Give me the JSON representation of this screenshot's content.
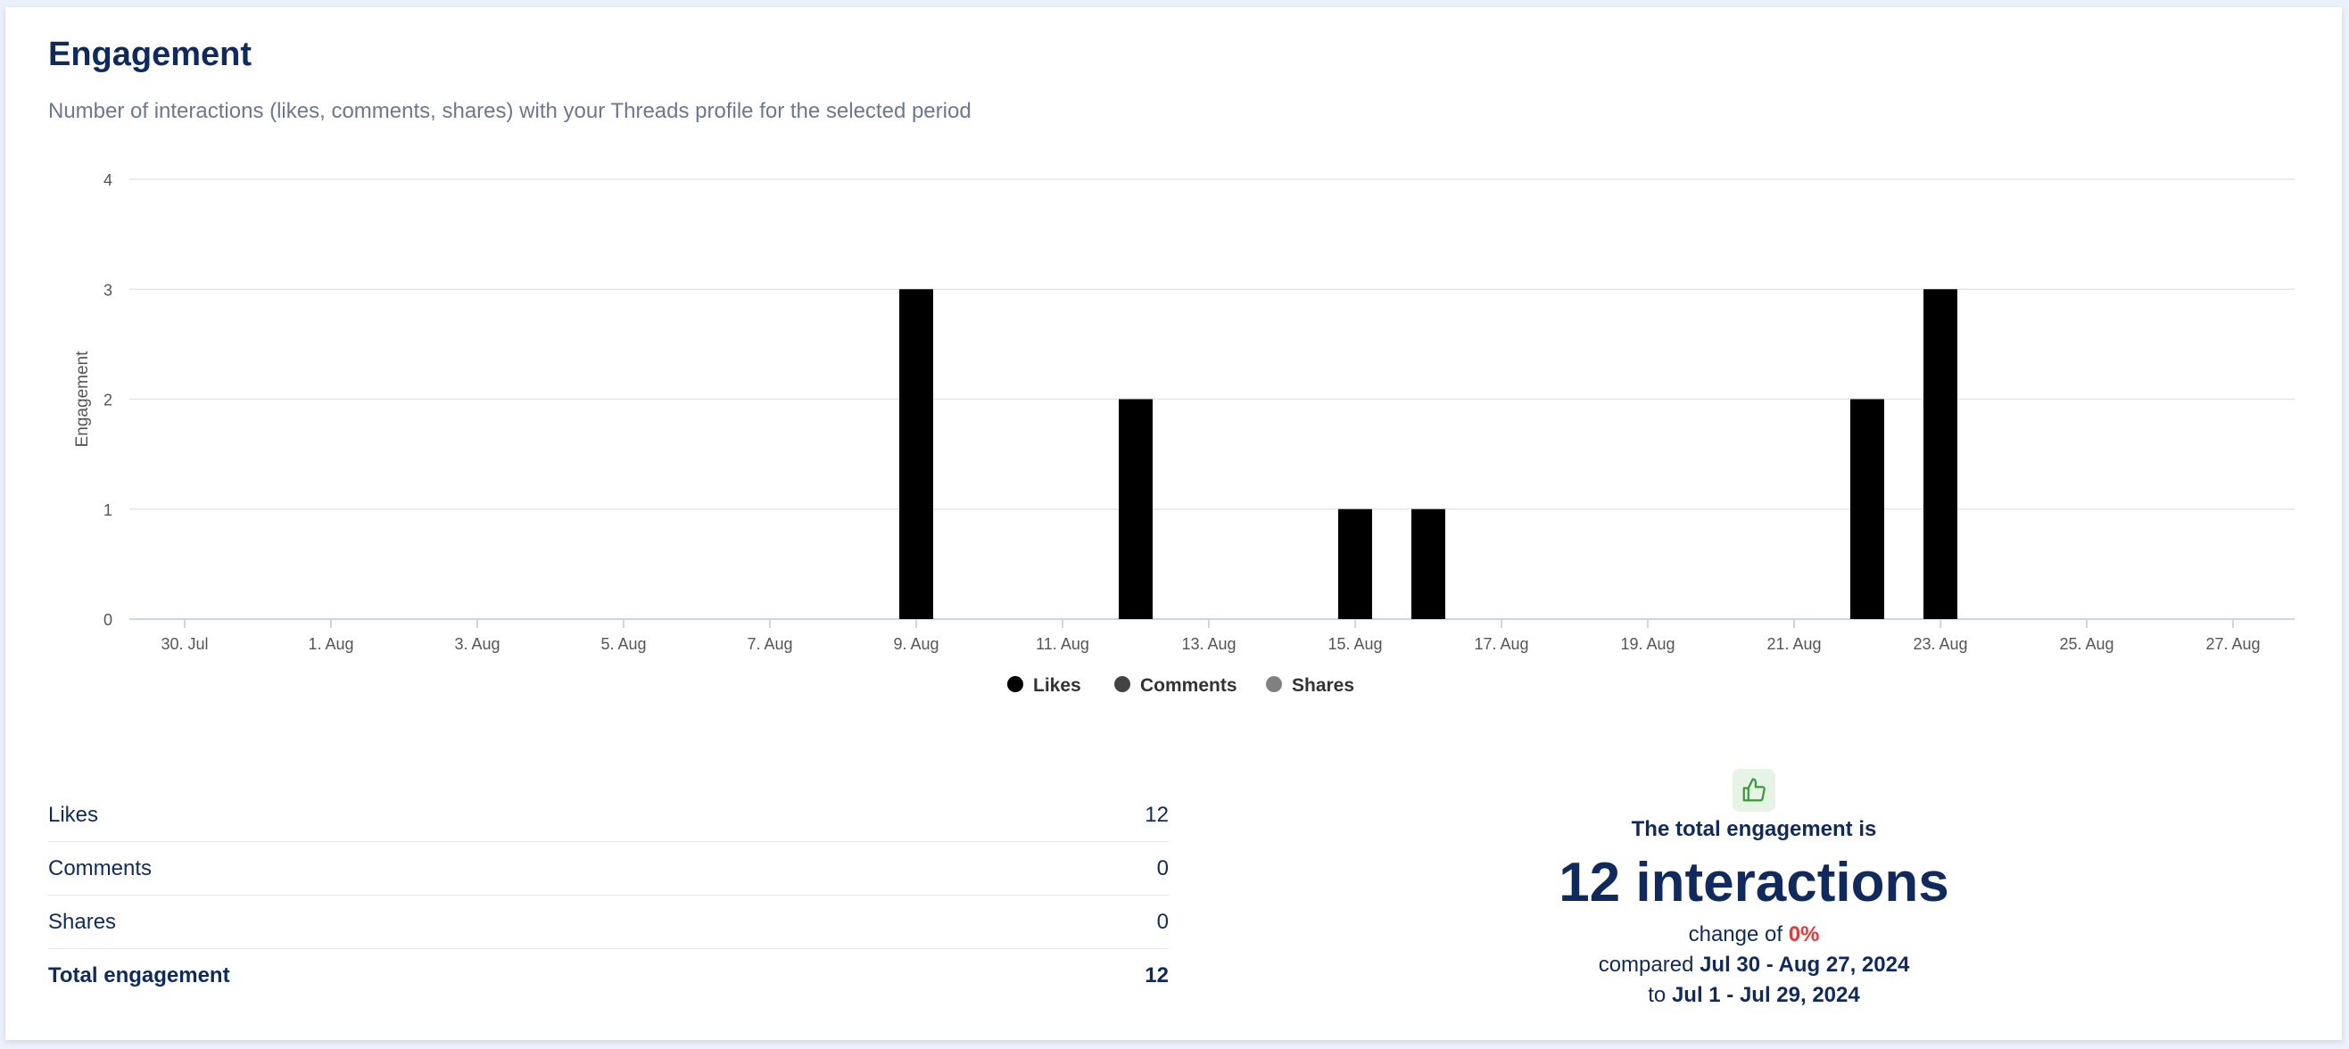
{
  "header": {
    "title": "Engagement",
    "subtitle": "Number of interactions (likes, comments, shares) with your Threads profile for the selected period"
  },
  "chart_data": {
    "type": "bar",
    "ylabel": "Engagement",
    "ylim": [
      0,
      4
    ],
    "yticks": [
      0,
      1,
      2,
      3,
      4
    ],
    "start_date": "2024-07-30",
    "xtick_labels": [
      "30. Jul",
      "1. Aug",
      "3. Aug",
      "5. Aug",
      "7. Aug",
      "9. Aug",
      "11. Aug",
      "13. Aug",
      "15. Aug",
      "17. Aug",
      "19. Aug",
      "21. Aug",
      "23. Aug",
      "25. Aug",
      "27. Aug"
    ],
    "categories": [
      "30. Jul",
      "31. Jul",
      "1. Aug",
      "2. Aug",
      "3. Aug",
      "4. Aug",
      "5. Aug",
      "6. Aug",
      "7. Aug",
      "8. Aug",
      "9. Aug",
      "10. Aug",
      "11. Aug",
      "12. Aug",
      "13. Aug",
      "14. Aug",
      "15. Aug",
      "16. Aug",
      "17. Aug",
      "18. Aug",
      "19. Aug",
      "20. Aug",
      "21. Aug",
      "22. Aug",
      "23. Aug",
      "24. Aug",
      "25. Aug",
      "26. Aug",
      "27. Aug"
    ],
    "series": [
      {
        "name": "Likes",
        "color": "#000000",
        "values": [
          0,
          0,
          0,
          0,
          0,
          0,
          0,
          0,
          0,
          0,
          3,
          0,
          0,
          2,
          0,
          0,
          1,
          1,
          0,
          0,
          0,
          0,
          0,
          2,
          3,
          0,
          0,
          0,
          0
        ]
      },
      {
        "name": "Comments",
        "color": "#434343",
        "values": [
          0,
          0,
          0,
          0,
          0,
          0,
          0,
          0,
          0,
          0,
          0,
          0,
          0,
          0,
          0,
          0,
          0,
          0,
          0,
          0,
          0,
          0,
          0,
          0,
          0,
          0,
          0,
          0,
          0
        ]
      },
      {
        "name": "Shares",
        "color": "#808080",
        "values": [
          0,
          0,
          0,
          0,
          0,
          0,
          0,
          0,
          0,
          0,
          0,
          0,
          0,
          0,
          0,
          0,
          0,
          0,
          0,
          0,
          0,
          0,
          0,
          0,
          0,
          0,
          0,
          0,
          0
        ]
      }
    ],
    "stacked": true,
    "grid": true,
    "legend": "bottom-center"
  },
  "stats": [
    {
      "label": "Likes",
      "value": "12"
    },
    {
      "label": "Comments",
      "value": "0"
    },
    {
      "label": "Shares",
      "value": "0"
    },
    {
      "label": "Total engagement",
      "value": "12"
    }
  ],
  "summary": {
    "icon": "thumbs-up-icon",
    "icon_color": "#3a9a3a",
    "label": "The total engagement is",
    "value": "12 interactions",
    "change_prefix": "change of ",
    "change_value": "0%",
    "compared_prefix": "compared ",
    "compared_range": "Jul 30 - Aug 27, 2024",
    "to_prefix": "to ",
    "to_range": "Jul 1 - Jul 29, 2024"
  }
}
